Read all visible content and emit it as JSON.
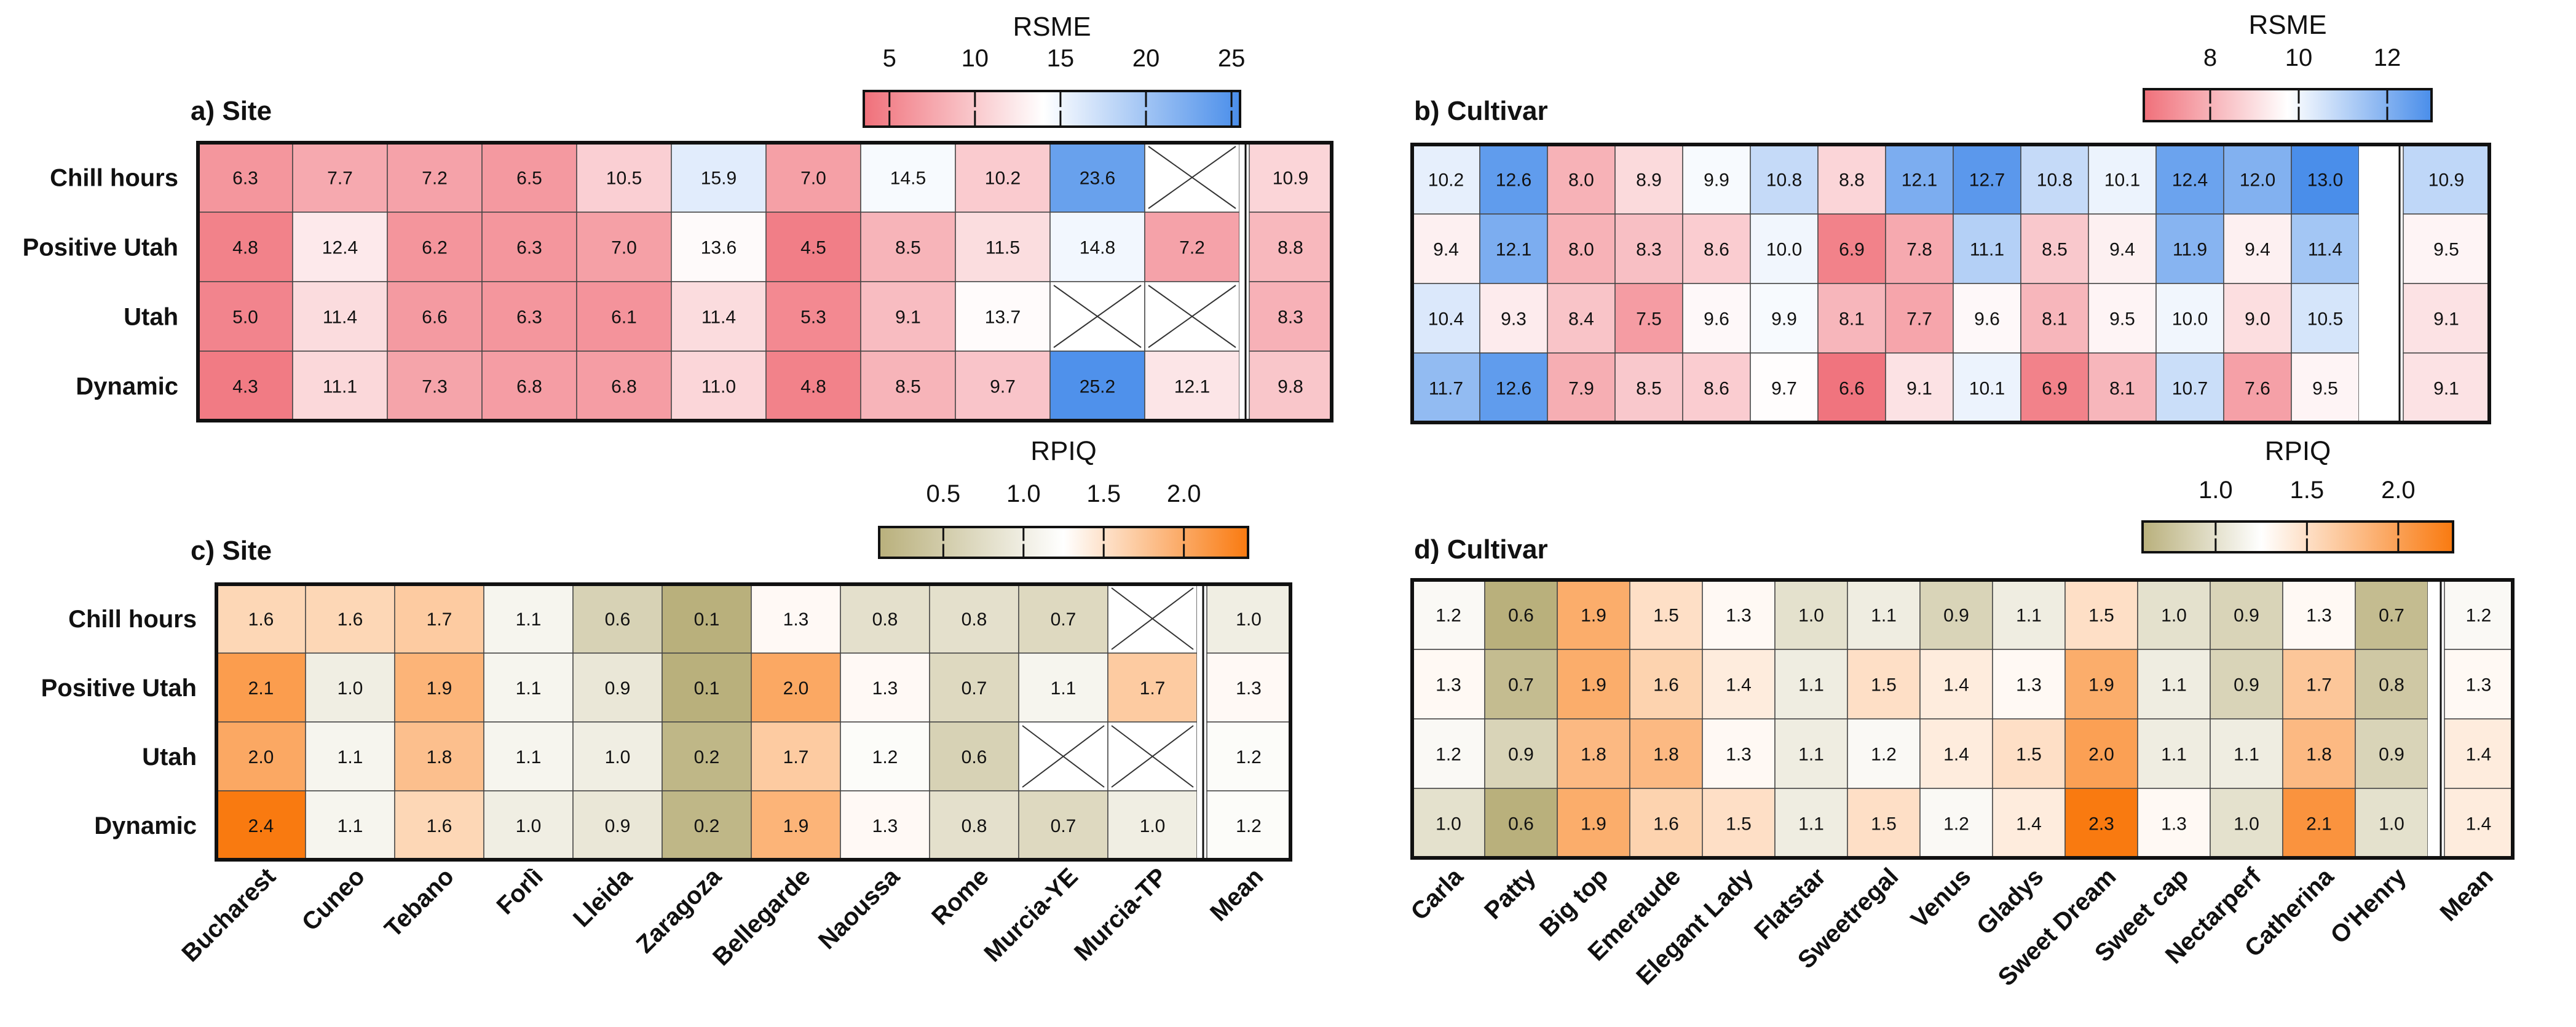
{
  "chart_data": [
    {
      "id": "a",
      "type": "heatmap",
      "title": "a) Site",
      "metric": "RSME",
      "rows": [
        "Chill hours",
        "Positive Utah",
        "Utah",
        "Dynamic"
      ],
      "columns": [
        "Bucharest",
        "Cuneo",
        "Tebano",
        "Forlì",
        "Lleida",
        "Zaragoza",
        "Bellegarde",
        "Naoussa",
        "Rome",
        "Murcia-YE",
        "Murcia-TP"
      ],
      "values": [
        [
          6.3,
          7.7,
          7.2,
          6.5,
          10.5,
          15.9,
          7.0,
          14.5,
          10.2,
          23.6,
          null
        ],
        [
          4.8,
          12.4,
          6.2,
          6.3,
          7.0,
          13.6,
          4.5,
          8.5,
          11.5,
          14.8,
          7.2
        ],
        [
          5.0,
          11.4,
          6.6,
          6.3,
          6.1,
          11.4,
          5.3,
          9.1,
          13.7,
          null,
          null
        ],
        [
          4.3,
          11.1,
          7.3,
          6.8,
          6.8,
          11.0,
          4.8,
          8.5,
          9.7,
          25.2,
          12.1
        ]
      ],
      "mean_label": "Mean",
      "mean": [
        10.9,
        8.8,
        8.3,
        9.8
      ],
      "colorbar": {
        "min": 3.5,
        "mid": 14,
        "max": 25.5,
        "ticks": [
          5,
          10,
          15,
          20,
          25
        ],
        "low_color": "#f0707a",
        "mid_color": "#ffffff",
        "high_color": "#4a8eea"
      }
    },
    {
      "id": "b",
      "type": "heatmap",
      "title": "b) Cultivar",
      "metric": "RSME",
      "rows": [
        "Chill hours",
        "Positive Utah",
        "Utah",
        "Dynamic"
      ],
      "columns": [
        "Carla",
        "Patty",
        "Big top",
        "Emeraude",
        "Elegant Lady",
        "Flatstar",
        "Sweetregal",
        "Venus",
        "Gladys",
        "Sweet Dream",
        "Sweet cap",
        "Nectarperf",
        "Catherina",
        "O'Henry"
      ],
      "values": [
        [
          10.2,
          12.6,
          8.0,
          8.9,
          9.9,
          10.8,
          8.8,
          12.1,
          12.7,
          10.8,
          10.1,
          12.4,
          12.0,
          13.0
        ],
        [
          9.4,
          12.1,
          8.0,
          8.3,
          8.6,
          10.0,
          6.9,
          7.8,
          11.1,
          8.5,
          9.4,
          11.9,
          9.4,
          11.4
        ],
        [
          10.4,
          9.3,
          8.4,
          7.5,
          9.6,
          9.9,
          8.1,
          7.7,
          9.6,
          8.1,
          9.5,
          10.0,
          9.0,
          10.5
        ],
        [
          11.7,
          12.6,
          7.9,
          8.5,
          8.6,
          9.7,
          6.6,
          9.1,
          10.1,
          6.9,
          8.1,
          10.7,
          7.6,
          9.5
        ]
      ],
      "mean_label": "",
      "mean": [
        10.9,
        9.5,
        9.1,
        9.1
      ],
      "colorbar": {
        "min": 6.5,
        "mid": 9.75,
        "max": 13.0,
        "ticks": [
          8,
          10,
          12
        ],
        "low_color": "#f0707a",
        "mid_color": "#ffffff",
        "high_color": "#4a8eea"
      }
    },
    {
      "id": "c",
      "type": "heatmap",
      "title": "c) Site",
      "metric": "RPIQ",
      "rows": [
        "Chill hours",
        "Positive Utah",
        "Utah",
        "Dynamic"
      ],
      "columns": [
        "Bucharest",
        "Cuneo",
        "Tebano",
        "Forlì",
        "Lleida",
        "Zaragoza",
        "Bellegarde",
        "Naoussa",
        "Rome",
        "Murcia-YE",
        "Murcia-TP"
      ],
      "values": [
        [
          1.6,
          1.6,
          1.7,
          1.1,
          0.6,
          0.1,
          1.3,
          0.8,
          0.8,
          0.7,
          null
        ],
        [
          2.1,
          1.0,
          1.9,
          1.1,
          0.9,
          0.1,
          2.0,
          1.3,
          0.7,
          1.1,
          1.7
        ],
        [
          2.0,
          1.1,
          1.8,
          1.1,
          1.0,
          0.2,
          1.7,
          1.2,
          0.6,
          null,
          null
        ],
        [
          2.4,
          1.1,
          1.6,
          1.0,
          0.9,
          0.2,
          1.9,
          1.3,
          0.8,
          0.7,
          1.0
        ]
      ],
      "mean_label": "",
      "mean": [
        1.0,
        1.3,
        1.2,
        1.2
      ],
      "colorbar": {
        "min": 0.1,
        "mid": 1.25,
        "max": 2.4,
        "ticks": [
          0.5,
          1.0,
          1.5,
          2.0
        ],
        "low_color": "#b9b07c",
        "mid_color": "#ffffff",
        "high_color": "#f97a10"
      }
    },
    {
      "id": "d",
      "type": "heatmap",
      "title": "d) Cultivar",
      "metric": "RPIQ",
      "rows": [
        "Chill hours",
        "Positive Utah",
        "Utah",
        "Dynamic"
      ],
      "columns": [
        "Carla",
        "Patty",
        "Big top",
        "Emeraude",
        "Elegant Lady",
        "Flatstar",
        "Sweetregal",
        "Venus",
        "Gladys",
        "Sweet Dream",
        "Sweet cap",
        "Nectarperf",
        "Catherina",
        "O'Henry"
      ],
      "values": [
        [
          1.2,
          0.6,
          1.9,
          1.5,
          1.3,
          1.0,
          1.1,
          0.9,
          1.1,
          1.5,
          1.0,
          0.9,
          1.3,
          0.7
        ],
        [
          1.3,
          0.7,
          1.9,
          1.6,
          1.4,
          1.1,
          1.5,
          1.4,
          1.3,
          1.9,
          1.1,
          0.9,
          1.7,
          0.8
        ],
        [
          1.2,
          0.9,
          1.8,
          1.8,
          1.3,
          1.1,
          1.2,
          1.4,
          1.5,
          2.0,
          1.1,
          1.1,
          1.8,
          0.9
        ],
        [
          1.0,
          0.6,
          1.9,
          1.6,
          1.5,
          1.1,
          1.5,
          1.2,
          1.4,
          2.3,
          1.3,
          1.0,
          2.1,
          1.0
        ]
      ],
      "mean_label": "",
      "mean": [
        1.2,
        1.3,
        1.4,
        1.4
      ],
      "colorbar": {
        "min": 0.6,
        "mid": 1.25,
        "max": 2.3,
        "ticks": [
          1.0,
          1.5,
          2.0
        ],
        "low_color": "#b9b07c",
        "mid_color": "#ffffff",
        "high_color": "#f97a10"
      }
    }
  ],
  "bottom_axis": {
    "site_columns": [
      "Bucharest",
      "Cuneo",
      "Tebano",
      "Forlì",
      "Lleida",
      "Zaragoza",
      "Bellegarde",
      "Naoussa",
      "Rome",
      "Murcia-YE",
      "Murcia-TP"
    ],
    "cultivar_columns": [
      "Carla",
      "Patty",
      "Big top",
      "Emeraude",
      "Elegant Lady",
      "Flatstar",
      "Sweetregal",
      "Venus",
      "Gladys",
      "Sweet Dream",
      "Sweet cap",
      "Nectarperf",
      "Catherina",
      "O'Henry"
    ],
    "mean_label": "Mean"
  }
}
